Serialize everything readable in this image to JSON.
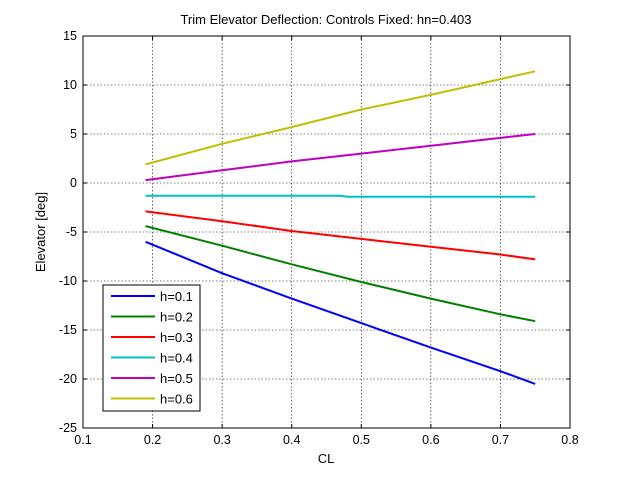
{
  "chart_data": {
    "type": "line",
    "title": "Trim Elevator Deflection: Controls Fixed: hn=0.403",
    "xlabel": "CL",
    "ylabel": "Elevator [deg]",
    "xlim": [
      0.1,
      0.8
    ],
    "ylim": [
      -25,
      15
    ],
    "xticks": [
      0.1,
      0.2,
      0.3,
      0.4,
      0.5,
      0.6,
      0.7,
      0.8
    ],
    "xtick_labels": [
      "0.1",
      "0.2",
      "0.3",
      "0.4",
      "0.5",
      "0.6",
      "0.7",
      "0.8"
    ],
    "yticks": [
      -25,
      -20,
      -15,
      -10,
      -5,
      0,
      5,
      10,
      15
    ],
    "ytick_labels": [
      "-25",
      "-20",
      "-15",
      "-10",
      "-5",
      "0",
      "5",
      "10",
      "15"
    ],
    "grid": true,
    "legend_position": "lower-left",
    "series": [
      {
        "name": "h=0.1",
        "color": "#0000ff",
        "x": [
          0.19,
          0.3,
          0.4,
          0.5,
          0.6,
          0.7,
          0.75
        ],
        "y": [
          -6.0,
          -9.2,
          -11.8,
          -14.3,
          -16.8,
          -19.2,
          -20.5
        ]
      },
      {
        "name": "h=0.2",
        "color": "#008000",
        "x": [
          0.19,
          0.3,
          0.4,
          0.5,
          0.6,
          0.7,
          0.75
        ],
        "y": [
          -4.4,
          -6.4,
          -8.3,
          -10.1,
          -11.8,
          -13.4,
          -14.1
        ]
      },
      {
        "name": "h=0.3",
        "color": "#ff0000",
        "x": [
          0.19,
          0.3,
          0.4,
          0.5,
          0.6,
          0.7,
          0.75
        ],
        "y": [
          -2.9,
          -3.9,
          -4.9,
          -5.7,
          -6.5,
          -7.3,
          -7.8
        ]
      },
      {
        "name": "h=0.4",
        "color": "#00bfbf",
        "x": [
          0.19,
          0.3,
          0.4,
          0.47,
          0.48,
          0.6,
          0.7,
          0.75
        ],
        "y": [
          -1.3,
          -1.3,
          -1.3,
          -1.3,
          -1.4,
          -1.4,
          -1.4,
          -1.4
        ]
      },
      {
        "name": "h=0.5",
        "color": "#bf00bf",
        "x": [
          0.19,
          0.3,
          0.4,
          0.5,
          0.6,
          0.7,
          0.75
        ],
        "y": [
          0.3,
          1.3,
          2.2,
          3.0,
          3.8,
          4.6,
          5.0
        ]
      },
      {
        "name": "h=0.6",
        "color": "#bfbf00",
        "x": [
          0.19,
          0.3,
          0.4,
          0.5,
          0.6,
          0.7,
          0.75
        ],
        "y": [
          1.9,
          4.0,
          5.7,
          7.5,
          9.0,
          10.6,
          11.4
        ]
      }
    ]
  }
}
